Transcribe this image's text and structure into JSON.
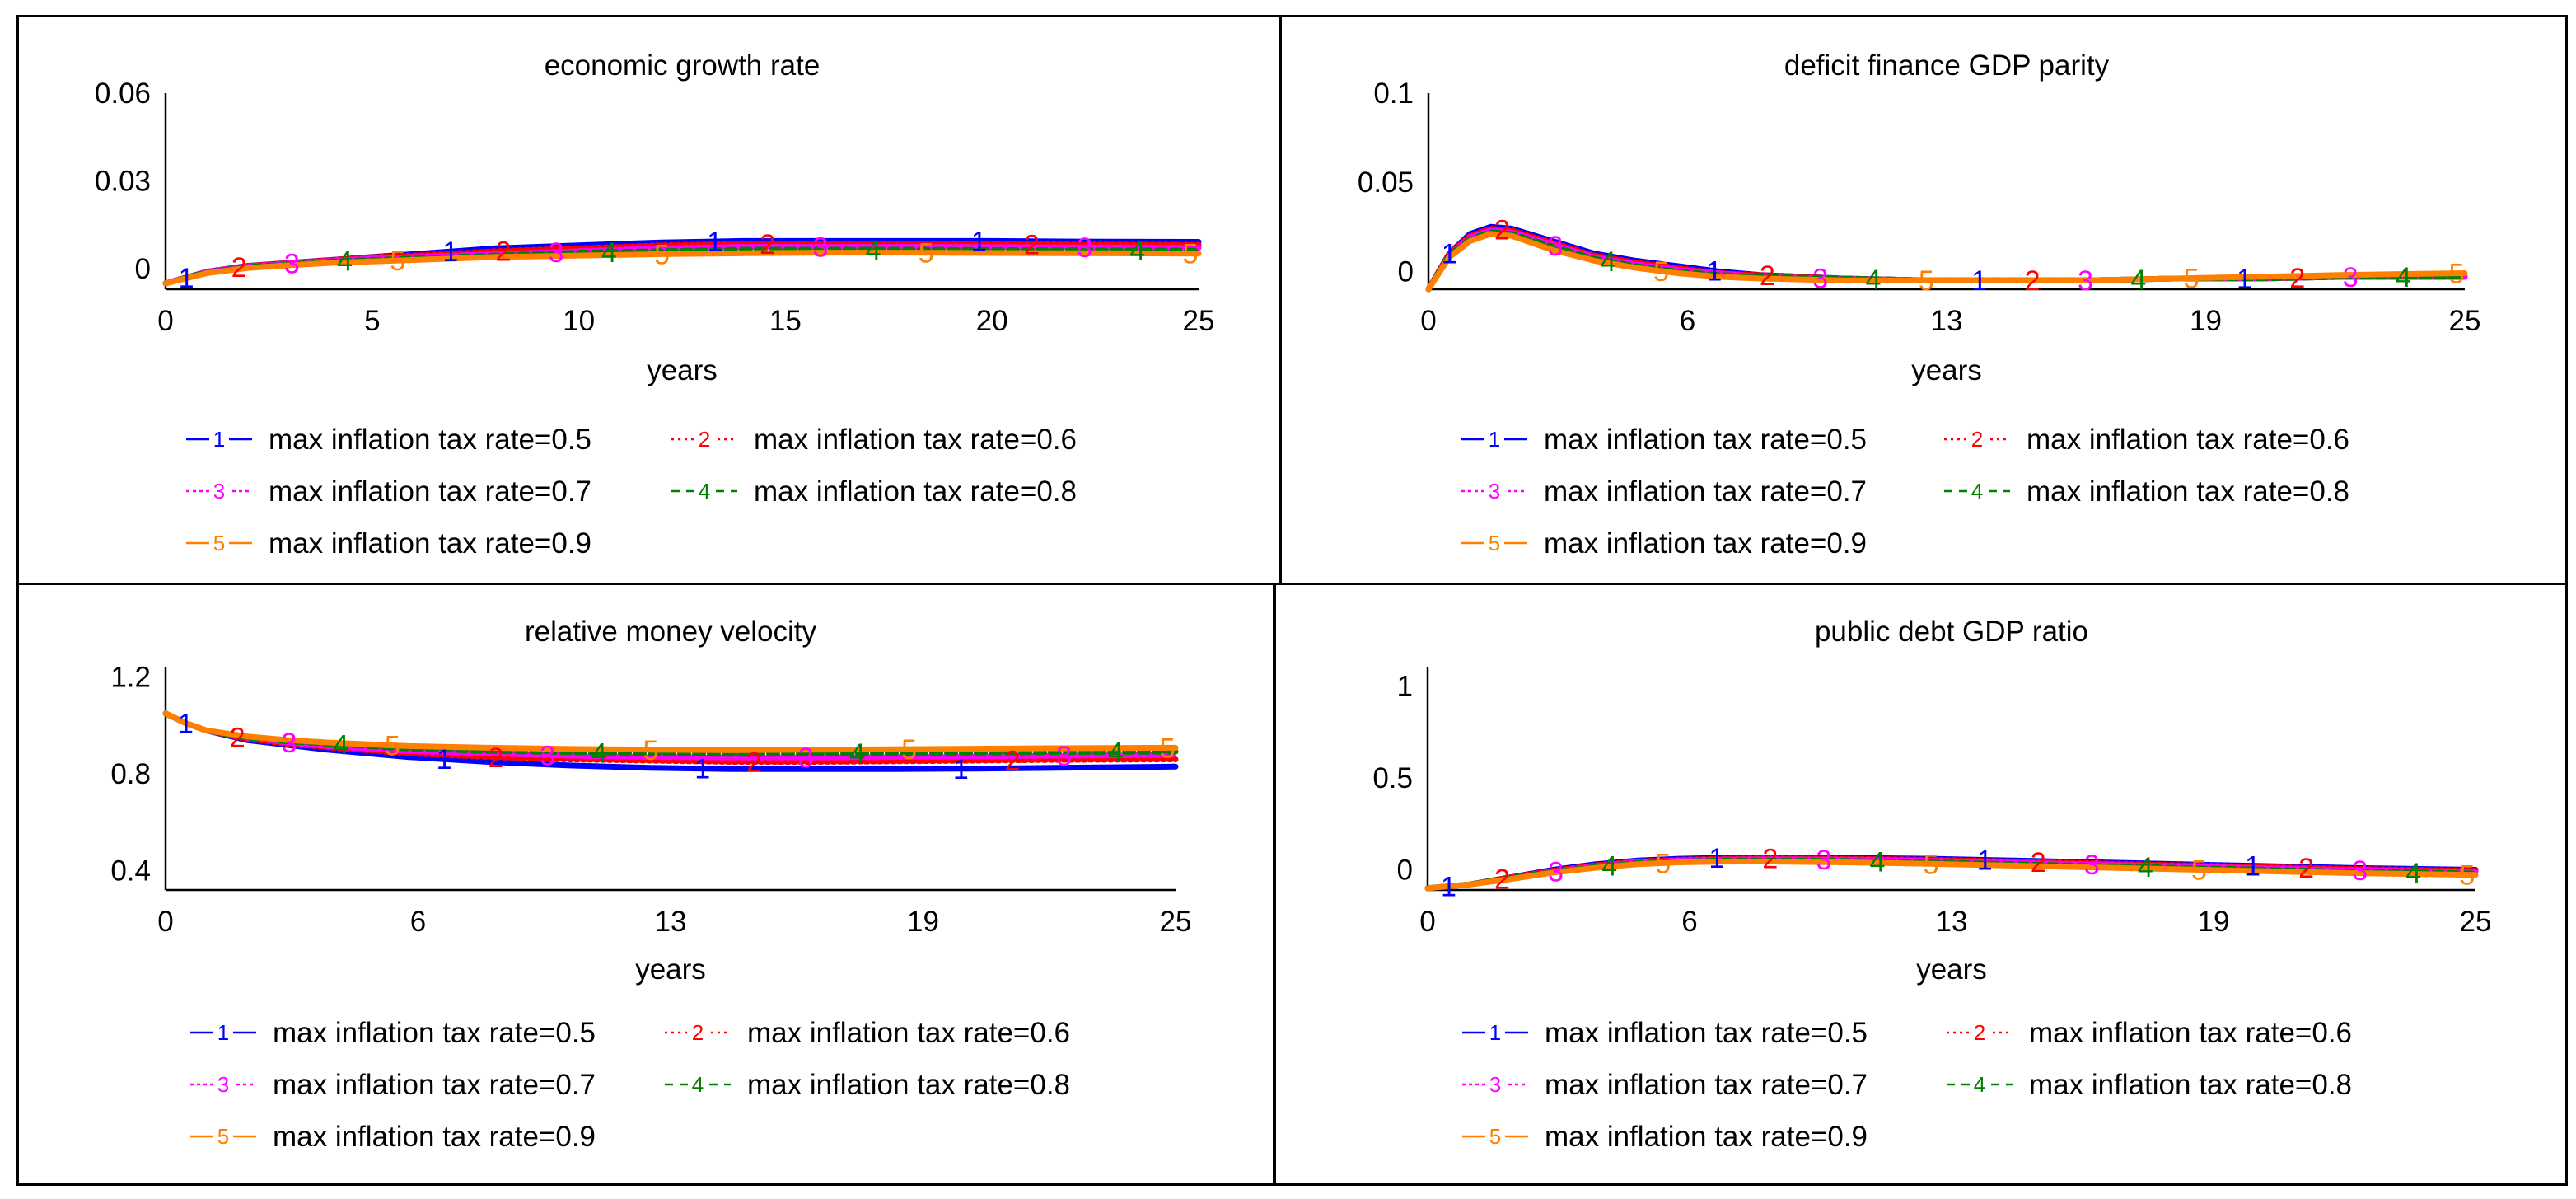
{
  "chart_data": [
    {
      "type": "line",
      "title": "economic growth rate",
      "xlabel": "years",
      "ylabel": "",
      "xlim": [
        0,
        25
      ],
      "ylim": [
        -0.007,
        0.06
      ],
      "xticks": [
        "0",
        "5",
        "10",
        "15",
        "20",
        "25"
      ],
      "xtick_values": [
        0,
        5,
        10,
        15,
        20,
        25
      ],
      "yticks": [
        "0.06",
        "0.03",
        "0"
      ],
      "ytick_values": [
        0.06,
        0.03,
        0
      ],
      "x": [
        0,
        1,
        2,
        3,
        4,
        5,
        6,
        8,
        10,
        12,
        14,
        16,
        18,
        20,
        22,
        25
      ],
      "series": [
        {
          "name": "max inflation tax rate=0.5",
          "marker": "1",
          "color": "#0000ff",
          "dash": "",
          "values": [
            -0.005,
            -0.001,
            0.001,
            0.002,
            0.003,
            0.004,
            0.005,
            0.007,
            0.008,
            0.009,
            0.0095,
            0.0095,
            0.0095,
            0.0095,
            0.0093,
            0.0092
          ]
        },
        {
          "name": "max inflation tax rate=0.6",
          "marker": "2",
          "color": "#ff0000",
          "dash": "3,5",
          "values": [
            -0.005,
            -0.001,
            0.001,
            0.002,
            0.003,
            0.004,
            0.0045,
            0.006,
            0.007,
            0.008,
            0.0085,
            0.0085,
            0.0085,
            0.0085,
            0.0083,
            0.0082
          ]
        },
        {
          "name": "max inflation tax rate=0.7",
          "marker": "3",
          "color": "#ff00ff",
          "dash": "4,4",
          "values": [
            -0.005,
            -0.001,
            0.0008,
            0.0018,
            0.0028,
            0.0035,
            0.004,
            0.005,
            0.006,
            0.007,
            0.0075,
            0.0075,
            0.0075,
            0.0074,
            0.0073,
            0.0072
          ]
        },
        {
          "name": "max inflation tax rate=0.8",
          "marker": "4",
          "color": "#008000",
          "dash": "10,8",
          "values": [
            -0.005,
            -0.0012,
            0.0006,
            0.0015,
            0.0025,
            0.003,
            0.0035,
            0.0045,
            0.0055,
            0.006,
            0.0065,
            0.0065,
            0.0065,
            0.0064,
            0.0063,
            0.0062
          ]
        },
        {
          "name": "max inflation tax rate=0.9",
          "marker": "5",
          "color": "#ff8000",
          "dash": "",
          "values": [
            -0.005,
            -0.0015,
            0.0003,
            0.0012,
            0.002,
            0.0025,
            0.003,
            0.004,
            0.0045,
            0.005,
            0.0053,
            0.0055,
            0.0055,
            0.0054,
            0.0053,
            0.0052
          ]
        }
      ]
    },
    {
      "type": "line",
      "title": "deficit finance GDP parity",
      "xlabel": "years",
      "ylabel": "",
      "xlim": [
        0,
        25
      ],
      "ylim": [
        -0.01,
        0.1
      ],
      "xticks": [
        "0",
        "6",
        "13",
        "19",
        "25"
      ],
      "xtick_values": [
        0,
        6.25,
        12.5,
        18.75,
        25
      ],
      "yticks": [
        "0.1",
        "0.05",
        "0"
      ],
      "ytick_values": [
        0.1,
        0.05,
        0
      ],
      "x": [
        0,
        0.5,
        1,
        1.5,
        2,
        3,
        4,
        5,
        6,
        7,
        8,
        10,
        12,
        14,
        16,
        18,
        20,
        22,
        25
      ],
      "series": [
        {
          "name": "max inflation tax rate=0.5",
          "marker": "1",
          "color": "#0000ff",
          "dash": "",
          "values": [
            -0.01,
            0.01,
            0.021,
            0.025,
            0.024,
            0.017,
            0.01,
            0.006,
            0.003,
            0.0,
            -0.002,
            -0.004,
            -0.005,
            -0.005,
            -0.005,
            -0.004,
            -0.004,
            -0.003,
            -0.003
          ]
        },
        {
          "name": "max inflation tax rate=0.6",
          "marker": "2",
          "color": "#ff0000",
          "dash": "3,5",
          "values": [
            -0.01,
            0.01,
            0.02,
            0.024,
            0.023,
            0.016,
            0.009,
            0.005,
            0.002,
            -0.001,
            -0.002,
            -0.004,
            -0.005,
            -0.005,
            -0.005,
            -0.004,
            -0.004,
            -0.003,
            -0.003
          ]
        },
        {
          "name": "max inflation tax rate=0.7",
          "marker": "3",
          "color": "#ff00ff",
          "dash": "4,4",
          "values": [
            -0.01,
            0.009,
            0.019,
            0.023,
            0.022,
            0.015,
            0.008,
            0.004,
            0.001,
            -0.001,
            -0.003,
            -0.004,
            -0.005,
            -0.005,
            -0.005,
            -0.004,
            -0.004,
            -0.003,
            -0.003
          ]
        },
        {
          "name": "max inflation tax rate=0.8",
          "marker": "4",
          "color": "#008000",
          "dash": "10,8",
          "values": [
            -0.01,
            0.009,
            0.018,
            0.022,
            0.021,
            0.014,
            0.007,
            0.003,
            0.0,
            -0.002,
            -0.003,
            -0.004,
            -0.005,
            -0.005,
            -0.005,
            -0.004,
            -0.004,
            -0.003,
            -0.003
          ]
        },
        {
          "name": "max inflation tax rate=0.9",
          "marker": "5",
          "color": "#ff8000",
          "dash": "",
          "values": [
            -0.01,
            0.008,
            0.017,
            0.021,
            0.02,
            0.012,
            0.006,
            0.002,
            -0.001,
            -0.003,
            -0.004,
            -0.005,
            -0.005,
            -0.005,
            -0.005,
            -0.004,
            -0.003,
            -0.002,
            -0.001
          ]
        }
      ]
    },
    {
      "type": "line",
      "title": "relative money velocity",
      "xlabel": "years",
      "ylabel": "",
      "xlim": [
        0,
        25
      ],
      "ylim": [
        0.32,
        1.24
      ],
      "xticks": [
        "0",
        "6",
        "13",
        "19",
        "25"
      ],
      "xtick_values": [
        0,
        6.25,
        12.5,
        18.75,
        25
      ],
      "yticks": [
        "1.2",
        "0.8",
        "0.4"
      ],
      "ytick_values": [
        1.2,
        0.8,
        0.4
      ],
      "x": [
        0,
        0.5,
        1,
        2,
        3,
        4,
        6,
        8,
        10,
        12,
        14,
        16,
        18,
        20,
        22,
        25
      ],
      "series": [
        {
          "name": "max inflation tax rate=0.5",
          "marker": "1",
          "color": "#0000ff",
          "dash": "",
          "values": [
            1.05,
            1.01,
            0.98,
            0.94,
            0.92,
            0.9,
            0.87,
            0.85,
            0.835,
            0.825,
            0.82,
            0.82,
            0.82,
            0.822,
            0.825,
            0.83
          ]
        },
        {
          "name": "max inflation tax rate=0.6",
          "marker": "2",
          "color": "#ff0000",
          "dash": "3,5",
          "values": [
            1.05,
            1.01,
            0.98,
            0.945,
            0.925,
            0.91,
            0.885,
            0.87,
            0.86,
            0.855,
            0.85,
            0.85,
            0.852,
            0.855,
            0.858,
            0.86
          ]
        },
        {
          "name": "max inflation tax rate=0.7",
          "marker": "3",
          "color": "#ff00ff",
          "dash": "4,4",
          "values": [
            1.05,
            1.01,
            0.98,
            0.95,
            0.93,
            0.915,
            0.895,
            0.885,
            0.875,
            0.87,
            0.868,
            0.868,
            0.87,
            0.872,
            0.875,
            0.878
          ]
        },
        {
          "name": "max inflation tax rate=0.8",
          "marker": "4",
          "color": "#008000",
          "dash": "10,8",
          "values": [
            1.05,
            1.01,
            0.98,
            0.95,
            0.935,
            0.925,
            0.905,
            0.895,
            0.89,
            0.885,
            0.883,
            0.884,
            0.886,
            0.888,
            0.89,
            0.892
          ]
        },
        {
          "name": "max inflation tax rate=0.9",
          "marker": "5",
          "color": "#ff8000",
          "dash": "",
          "values": [
            1.05,
            1.01,
            0.98,
            0.955,
            0.94,
            0.93,
            0.915,
            0.908,
            0.903,
            0.9,
            0.898,
            0.9,
            0.902,
            0.904,
            0.906,
            0.908
          ]
        }
      ]
    },
    {
      "type": "line",
      "title": "public debt GDP ratio",
      "xlabel": "years",
      "ylabel": "",
      "xlim": [
        0,
        25
      ],
      "ylim": [
        -0.11,
        1.1
      ],
      "xticks": [
        "0",
        "6",
        "13",
        "19",
        "25"
      ],
      "xtick_values": [
        0,
        6.25,
        12.5,
        18.75,
        25
      ],
      "yticks": [
        "1",
        "0.5",
        "0"
      ],
      "ytick_values": [
        1,
        0.5,
        0
      ],
      "x": [
        0,
        1,
        2,
        3,
        4,
        5,
        6,
        7,
        8,
        10,
        12,
        14,
        16,
        18,
        20,
        22,
        25
      ],
      "series": [
        {
          "name": "max inflation tax rate=0.5",
          "marker": "1",
          "color": "#0000ff",
          "dash": "",
          "values": [
            -0.1,
            -0.08,
            -0.04,
            0.0,
            0.03,
            0.05,
            0.06,
            0.065,
            0.067,
            0.065,
            0.06,
            0.05,
            0.04,
            0.03,
            0.02,
            0.01,
            0.0
          ]
        },
        {
          "name": "max inflation tax rate=0.6",
          "marker": "2",
          "color": "#ff0000",
          "dash": "3,5",
          "values": [
            -0.1,
            -0.08,
            -0.04,
            -0.005,
            0.025,
            0.045,
            0.055,
            0.06,
            0.062,
            0.06,
            0.055,
            0.045,
            0.035,
            0.025,
            0.015,
            0.005,
            -0.005
          ]
        },
        {
          "name": "max inflation tax rate=0.7",
          "marker": "3",
          "color": "#ff00ff",
          "dash": "4,4",
          "values": [
            -0.1,
            -0.08,
            -0.045,
            -0.01,
            0.02,
            0.04,
            0.05,
            0.055,
            0.057,
            0.055,
            0.048,
            0.038,
            0.028,
            0.018,
            0.008,
            -0.002,
            -0.012
          ]
        },
        {
          "name": "max inflation tax rate=0.8",
          "marker": "4",
          "color": "#008000",
          "dash": "10,8",
          "values": [
            -0.1,
            -0.08,
            -0.045,
            -0.012,
            0.015,
            0.035,
            0.045,
            0.05,
            0.05,
            0.048,
            0.04,
            0.03,
            0.02,
            0.01,
            0.0,
            -0.01,
            -0.02
          ]
        },
        {
          "name": "max inflation tax rate=0.9",
          "marker": "5",
          "color": "#ff8000",
          "dash": "",
          "values": [
            -0.1,
            -0.08,
            -0.05,
            -0.015,
            0.01,
            0.03,
            0.04,
            0.044,
            0.045,
            0.04,
            0.032,
            0.022,
            0.012,
            0.002,
            -0.008,
            -0.018,
            -0.028
          ]
        }
      ]
    }
  ],
  "legend": {
    "items": [
      {
        "marker": "1",
        "label": "max inflation tax rate=0.5"
      },
      {
        "marker": "2",
        "label": "max inflation tax rate=0.6"
      },
      {
        "marker": "3",
        "label": "max inflation tax rate=0.7"
      },
      {
        "marker": "4",
        "label": "max inflation tax rate=0.8"
      },
      {
        "marker": "5",
        "label": "max inflation tax rate=0.9"
      }
    ]
  }
}
